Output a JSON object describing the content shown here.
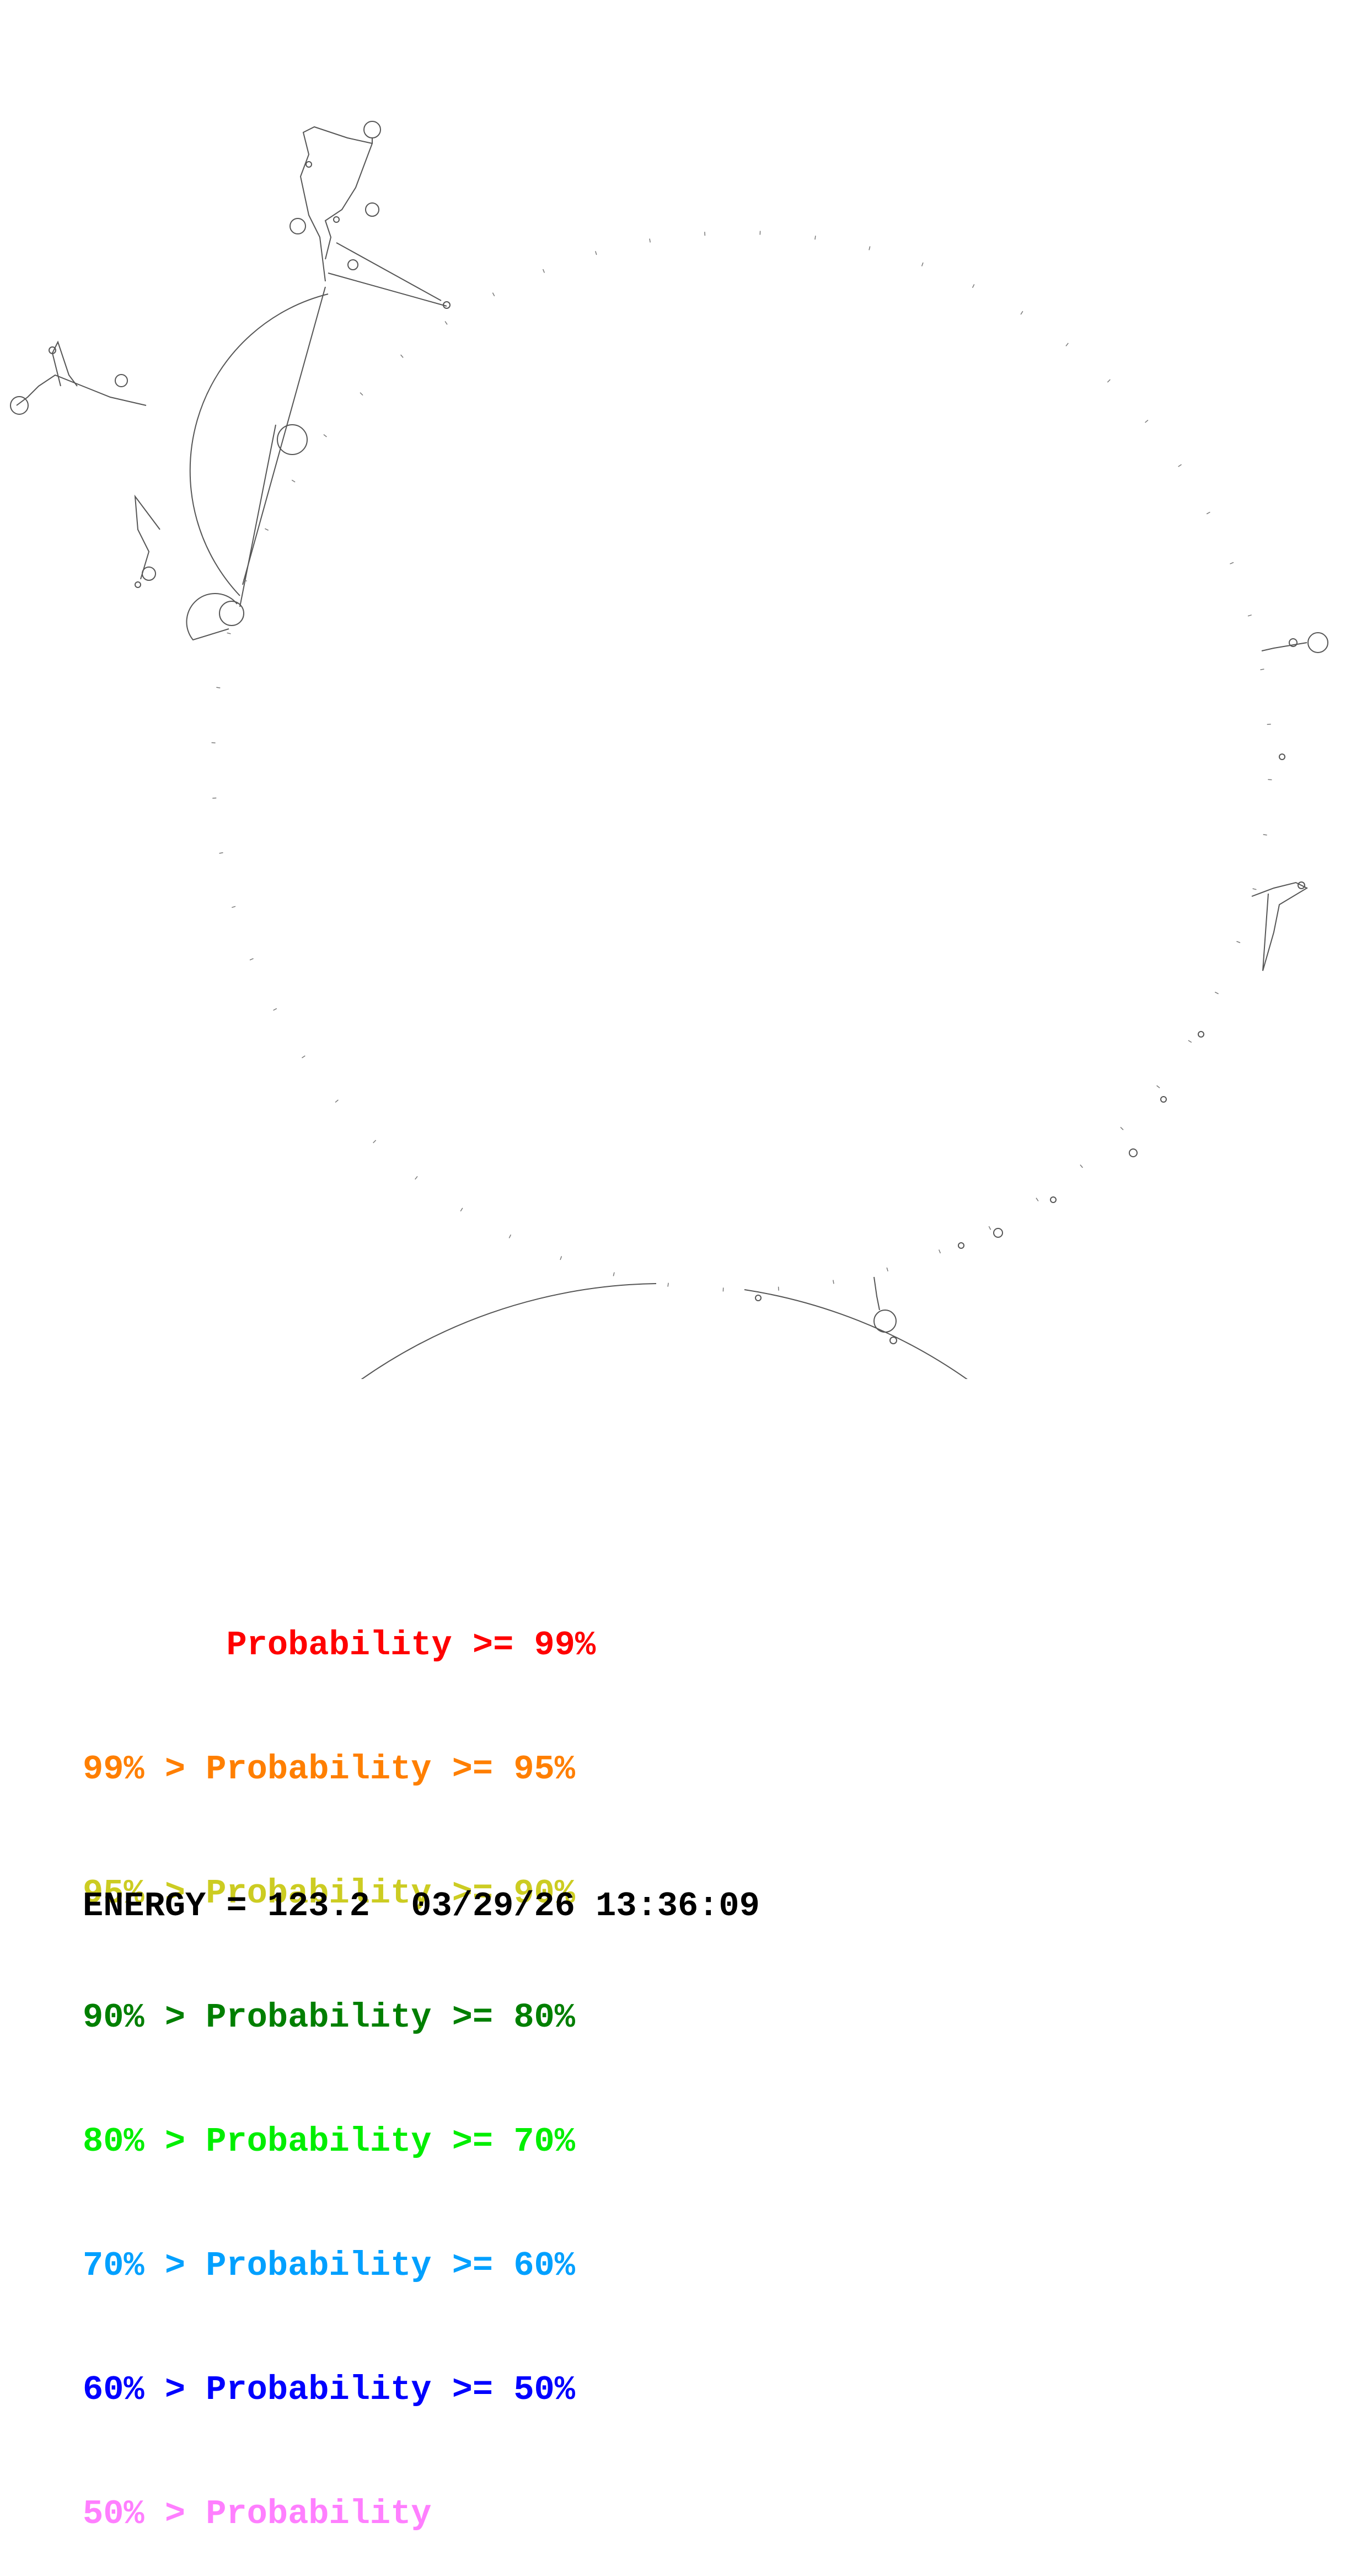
{
  "legend": {
    "rows": [
      {
        "prefix": "       ",
        "text": "Probability >= 99%",
        "color": "#ff0000"
      },
      {
        "prefix": "99% > ",
        "text": "Probability >= 95%",
        "color": "#ff7f00"
      },
      {
        "prefix": "95% > ",
        "text": "Probability >= 90%",
        "color": "#cccc22"
      },
      {
        "prefix": "90% > ",
        "text": "Probability >= 80%",
        "color": "#007f00"
      },
      {
        "prefix": "80% > ",
        "text": "Probability >= 70%",
        "color": "#00ee00"
      },
      {
        "prefix": "70% > ",
        "text": "Probability >= 60%",
        "color": "#00a0ff"
      },
      {
        "prefix": "60% > ",
        "text": "Probability >= 50%",
        "color": "#0000ff"
      },
      {
        "prefix": "50% > ",
        "text": "Probability",
        "color": "#ff7fff"
      }
    ]
  },
  "footer": {
    "energy": "ENERGY = 123.2  03/29/26 13:36:09"
  },
  "diagram": {
    "stroke_color": "#555555"
  }
}
